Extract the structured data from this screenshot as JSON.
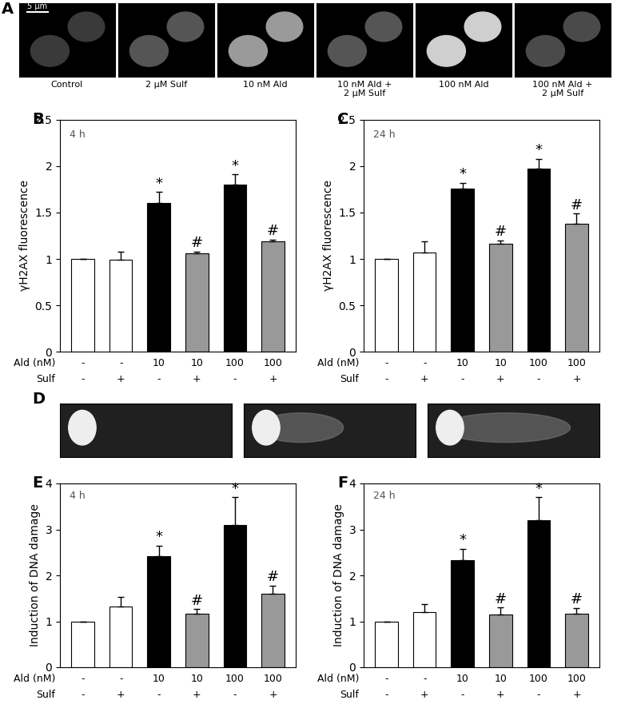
{
  "images": [
    {
      "panel": "A",
      "captions": [
        "Control",
        "2 µM Sulf",
        "10 nM Ald",
        "10 nM Ald +\n2 µM Sulf",
        "100 nM Ald",
        "100 nM Ald +\n2 µM Sulf"
      ],
      "scale_bar": "5 µm"
    },
    {
      "panel": "D",
      "count": 3
    }
  ],
  "chart_data": [
    {
      "panel": "B",
      "type": "bar",
      "note": "4 h",
      "ylabel": "γH2AX fluorescence",
      "x_rows": [
        {
          "label": "Ald (nM)",
          "values": [
            "-",
            "-",
            "10",
            "10",
            "100",
            "100"
          ]
        },
        {
          "label": "Sulf",
          "values": [
            "-",
            "+",
            "-",
            "+",
            "-",
            "+"
          ]
        }
      ],
      "values": [
        1,
        0.99,
        1.6,
        1.06,
        1.8,
        1.19
      ],
      "errors": [
        0,
        0.09,
        0.12,
        0.02,
        0.11,
        0.02
      ],
      "marks": [
        null,
        null,
        "*",
        "#",
        "*",
        "#"
      ],
      "colors": [
        "#ffffff",
        "#ffffff",
        "#000000",
        "#999999",
        "#000000",
        "#999999"
      ],
      "ylim": [
        0,
        2.5
      ],
      "yticks": [
        0,
        0.5,
        1,
        1.5,
        2,
        2.5
      ],
      "tick_labels": "y"
    },
    {
      "panel": "C",
      "type": "bar",
      "note": "24 h",
      "ylabel": "γH2AX fluorescence",
      "x_rows": [
        {
          "label": "Ald (nM)",
          "values": [
            "-",
            "-",
            "10",
            "10",
            "100",
            "100"
          ]
        },
        {
          "label": "Sulf",
          "values": [
            "-",
            "+",
            "-",
            "+",
            "-",
            "+"
          ]
        }
      ],
      "values": [
        1,
        1.07,
        1.76,
        1.16,
        1.97,
        1.38
      ],
      "errors": [
        0,
        0.12,
        0.06,
        0.04,
        0.11,
        0.11
      ],
      "marks": [
        null,
        null,
        "*",
        "#",
        "*",
        "#"
      ],
      "colors": [
        "#ffffff",
        "#ffffff",
        "#000000",
        "#999999",
        "#000000",
        "#999999"
      ],
      "ylim": [
        0,
        2.5
      ],
      "yticks": [
        0,
        0.5,
        1,
        1.5,
        2,
        2.5
      ],
      "tick_labels": "y"
    },
    {
      "panel": "E",
      "type": "bar",
      "note": "4 h",
      "ylabel": "Induction of DNA damage",
      "x_rows": [
        {
          "label": "Ald (nM)",
          "values": [
            "-",
            "-",
            "10",
            "10",
            "100",
            "100"
          ]
        },
        {
          "label": "Sulf",
          "values": [
            "-",
            "+",
            "-",
            "+",
            "-",
            "+"
          ]
        }
      ],
      "values": [
        1,
        1.33,
        2.42,
        1.16,
        3.1,
        1.6
      ],
      "errors": [
        0,
        0.2,
        0.23,
        0.11,
        0.6,
        0.18
      ],
      "marks": [
        null,
        null,
        "*",
        "#",
        "*",
        "#"
      ],
      "colors": [
        "#ffffff",
        "#ffffff",
        "#000000",
        "#999999",
        "#000000",
        "#999999"
      ],
      "ylim": [
        0,
        4
      ],
      "yticks": [
        0,
        1,
        2,
        3,
        4
      ],
      "tick_labels": "y"
    },
    {
      "panel": "F",
      "type": "bar",
      "note": "24 h",
      "ylabel": "Induction of DNA damage",
      "x_rows": [
        {
          "label": "Ald (nM)",
          "values": [
            "-",
            "-",
            "10",
            "10",
            "100",
            "100"
          ]
        },
        {
          "label": "Sulf",
          "values": [
            "-",
            "+",
            "-",
            "+",
            "-",
            "+"
          ]
        }
      ],
      "values": [
        1,
        1.2,
        2.33,
        1.15,
        3.2,
        1.17
      ],
      "errors": [
        0,
        0.17,
        0.25,
        0.15,
        0.5,
        0.12
      ],
      "marks": [
        null,
        null,
        "*",
        "#",
        "*",
        "#"
      ],
      "colors": [
        "#ffffff",
        "#ffffff",
        "#000000",
        "#999999",
        "#000000",
        "#999999"
      ],
      "ylim": [
        0,
        4
      ],
      "yticks": [
        0,
        1,
        2,
        3,
        4
      ],
      "tick_labels": "y"
    }
  ]
}
